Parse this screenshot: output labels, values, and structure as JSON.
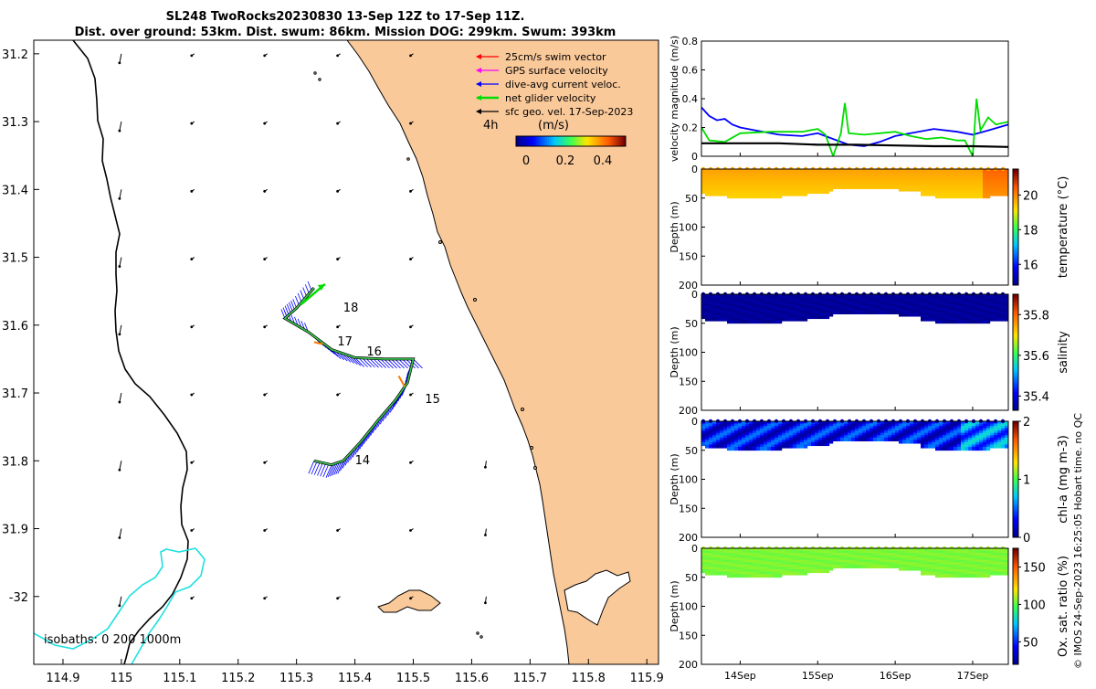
{
  "title": {
    "line1": "SL248 TwoRocks20230830 13-Sep 12Z to 17-Sep 11Z.",
    "line2": "Dist. over ground: 53km. Dist. swum: 86km. Mission DOG: 299km. Swum: 393km"
  },
  "map": {
    "type": "map",
    "x_ticks": [
      "114.9",
      "115",
      "115.1",
      "115.2",
      "115.3",
      "115.4",
      "115.5",
      "115.6",
      "115.7",
      "115.8",
      "115.9"
    ],
    "y_ticks": [
      "31.2",
      "31.3",
      "31.4",
      "31.5",
      "31.6",
      "31.7",
      "31.8",
      "31.9",
      "-32"
    ],
    "xlim": [
      114.85,
      115.92
    ],
    "ylim": [
      -32.1,
      -31.18
    ],
    "legend": [
      {
        "label": "25cm/s swim vector",
        "color": "#ff0000"
      },
      {
        "label": "GPS surface velocity",
        "color": "#ff00ff"
      },
      {
        "label": "dive-avg current veloc.",
        "color": "#0000ff"
      },
      {
        "label": "net glider velocity",
        "color": "#00dd00"
      },
      {
        "label": "sfc geo. vel. 17-Sep-2023",
        "color": "#000000"
      }
    ],
    "scale_label": "4h",
    "colorbar": {
      "label": "(m/s)",
      "ticks": [
        "0",
        "0.2",
        "0.4"
      ],
      "range": [
        0,
        0.5
      ]
    },
    "day_labels": [
      {
        "text": "18",
        "lon": 115.38,
        "lat": -31.58
      },
      {
        "text": "17",
        "lon": 115.37,
        "lat": -31.63
      },
      {
        "text": "16",
        "lon": 115.42,
        "lat": -31.645
      },
      {
        "text": "15",
        "lon": 115.52,
        "lat": -31.715
      },
      {
        "text": "14",
        "lon": 115.4,
        "lat": -31.805
      }
    ],
    "isobaths_label": "isobaths: 0   200  1000m",
    "track": [
      [
        115.33,
        -31.8
      ],
      [
        115.36,
        -31.806
      ],
      [
        115.38,
        -31.8
      ],
      [
        115.41,
        -31.772
      ],
      [
        115.44,
        -31.74
      ],
      [
        115.47,
        -31.71
      ],
      [
        115.49,
        -31.685
      ],
      [
        115.5,
        -31.65
      ],
      [
        115.45,
        -31.65
      ],
      [
        115.4,
        -31.648
      ],
      [
        115.36,
        -31.636
      ],
      [
        115.32,
        -31.61
      ],
      [
        115.28,
        -31.59
      ],
      [
        115.3,
        -31.575
      ],
      [
        115.33,
        -31.545
      ]
    ]
  },
  "velocity": {
    "type": "line",
    "ylabel": "velocity magnitude (m/s)",
    "y_ticks": [
      "0",
      "0.2",
      "0.4",
      "0.6",
      "0.8"
    ],
    "ylim": [
      0,
      0.8
    ],
    "xlim": [
      13.5,
      17.46
    ],
    "series": [
      {
        "name": "dive-avg current veloc.",
        "color": "#0000ff",
        "x": [
          13.5,
          13.6,
          13.7,
          13.8,
          13.9,
          14.0,
          14.2,
          14.5,
          14.8,
          15.0,
          15.2,
          15.4,
          15.6,
          15.8,
          16.0,
          16.2,
          16.5,
          16.8,
          17.0,
          17.2,
          17.46
        ],
        "y": [
          0.34,
          0.28,
          0.25,
          0.26,
          0.22,
          0.2,
          0.18,
          0.15,
          0.14,
          0.16,
          0.12,
          0.08,
          0.07,
          0.1,
          0.14,
          0.16,
          0.19,
          0.17,
          0.15,
          0.18,
          0.22
        ]
      },
      {
        "name": "net glider velocity",
        "color": "#00dd00",
        "x": [
          13.5,
          13.6,
          13.8,
          14.0,
          14.4,
          14.6,
          14.8,
          15.0,
          15.1,
          15.2,
          15.3,
          15.35,
          15.4,
          15.6,
          15.8,
          16.0,
          16.2,
          16.4,
          16.6,
          16.8,
          16.9,
          17.0,
          17.05,
          17.1,
          17.2,
          17.3,
          17.46
        ],
        "y": [
          0.2,
          0.11,
          0.1,
          0.16,
          0.17,
          0.17,
          0.17,
          0.19,
          0.15,
          0.0,
          0.16,
          0.37,
          0.16,
          0.15,
          0.16,
          0.17,
          0.14,
          0.12,
          0.13,
          0.11,
          0.11,
          0.0,
          0.4,
          0.18,
          0.27,
          0.22,
          0.24
        ]
      },
      {
        "name": "sfc geo. vel.",
        "color": "#000000",
        "x": [
          13.5,
          14.0,
          14.5,
          15.0,
          15.5,
          16.0,
          16.5,
          17.0,
          17.46
        ],
        "y": [
          0.09,
          0.09,
          0.09,
          0.08,
          0.08,
          0.075,
          0.07,
          0.07,
          0.065
        ]
      }
    ]
  },
  "profiles": [
    {
      "name": "temperature",
      "ylabel": "Depth (m)",
      "cblabel": "temperature (°C)",
      "cb_ticks": [
        "16",
        "18",
        "20"
      ],
      "cb_range": [
        14.8,
        21.5
      ],
      "colormap": "thermal",
      "base_value": 19.8,
      "depth_ticks": [
        "0",
        "50",
        "100",
        "150",
        "200"
      ]
    },
    {
      "name": "salinity",
      "ylabel": "Depth (m)",
      "cblabel": "salinity",
      "cb_ticks": [
        "35.4",
        "35.6",
        "35.8"
      ],
      "cb_range": [
        35.33,
        35.9
      ],
      "colormap": "haline",
      "base_value": 35.34,
      "depth_ticks": [
        "0",
        "50",
        "100",
        "150",
        "200"
      ]
    },
    {
      "name": "chl-a",
      "ylabel": "Depth (m)",
      "cblabel": "chl-a (mg m-3)",
      "cb_ticks": [
        "0",
        "1",
        "2"
      ],
      "cb_range": [
        0,
        2
      ],
      "colormap": "algae",
      "base_value": 0.35,
      "depth_ticks": [
        "0",
        "50",
        "100",
        "150",
        "200"
      ]
    },
    {
      "name": "oxygen",
      "ylabel": "Depth (m)",
      "cblabel": "Ox. sat. ratio (%)",
      "cb_ticks": [
        "50",
        "100",
        "150"
      ],
      "cb_range": [
        20,
        175
      ],
      "colormap": "oxy",
      "base_value": 107,
      "depth_ticks": [
        "0",
        "50",
        "100",
        "150",
        "200"
      ]
    }
  ],
  "time_axis": {
    "labels": [
      "14Sep",
      "15Sep",
      "16Sep",
      "17Sep"
    ],
    "days": [
      14,
      15,
      16,
      17
    ]
  },
  "credit": "© IMOS 24-Sep-2023 16:25:05 Hobart time. no QC"
}
